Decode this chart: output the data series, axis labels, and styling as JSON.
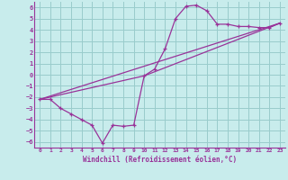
{
  "xlabel": "Windchill (Refroidissement éolien,°C)",
  "bg_color": "#c8ecec",
  "line_color": "#993399",
  "grid_color": "#99cccc",
  "xlim": [
    -0.5,
    23.5
  ],
  "ylim": [
    -6.5,
    6.5
  ],
  "yticks": [
    -6,
    -5,
    -4,
    -3,
    -2,
    -1,
    0,
    1,
    2,
    3,
    4,
    5,
    6
  ],
  "xticks": [
    0,
    1,
    2,
    3,
    4,
    5,
    6,
    7,
    8,
    9,
    10,
    11,
    12,
    13,
    14,
    15,
    16,
    17,
    18,
    19,
    20,
    21,
    22,
    23
  ],
  "line1_x": [
    0,
    1,
    2,
    3,
    4,
    5,
    6,
    7,
    8,
    9,
    10,
    11,
    12,
    13,
    14,
    15,
    16,
    17,
    18,
    19,
    20,
    21,
    22,
    23
  ],
  "line1_y": [
    -2.2,
    -2.2,
    -3.0,
    -3.5,
    -4.0,
    -4.5,
    -6.1,
    -4.5,
    -4.6,
    -4.5,
    -0.1,
    0.5,
    2.3,
    5.0,
    6.1,
    6.2,
    5.7,
    4.5,
    4.5,
    4.3,
    4.3,
    4.2,
    4.2,
    4.6
  ],
  "line2_x": [
    0,
    23
  ],
  "line2_y": [
    -2.2,
    4.6
  ],
  "line3_x": [
    0,
    10,
    23
  ],
  "line3_y": [
    -2.2,
    -0.1,
    4.6
  ]
}
